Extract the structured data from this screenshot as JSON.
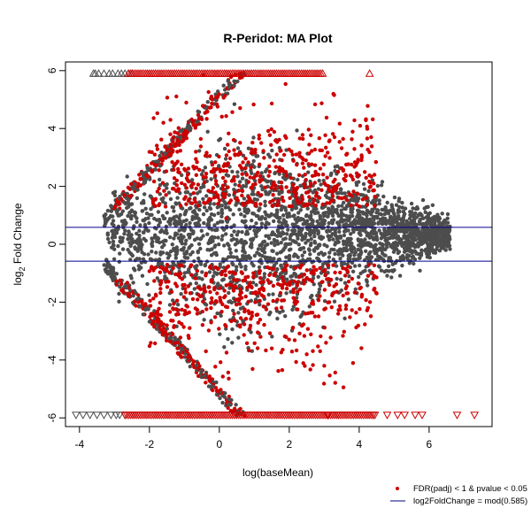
{
  "chart_data": {
    "type": "scatter",
    "title": "R-Peridot: MA Plot",
    "xlabel": "log(baseMean)",
    "ylabel_main": "log",
    "ylabel_sub": "2",
    "ylabel_rest": " Fold Change",
    "xlim": [
      -4.4,
      7.8
    ],
    "ylim": [
      -6.3,
      6.3
    ],
    "xticks": [
      -4,
      -2,
      0,
      2,
      4,
      6
    ],
    "yticks": [
      -6,
      -4,
      -2,
      0,
      2,
      4,
      6
    ],
    "threshold_lines": [
      0.585,
      -0.585
    ],
    "grid": false,
    "legend_position": "bottom-right",
    "colors": {
      "nonsignificant": "#4d4d4d",
      "significant": "#cc0000",
      "threshold_line": "#00008b",
      "axis": "#000000"
    },
    "series": [
      {
        "name": "FDR(padj) < 1 & pvalue < 0.05",
        "marker": "filled-circle",
        "color": "#cc0000",
        "points": [
          [
            -1.6,
            4.2
          ],
          [
            -1.4,
            3.8
          ],
          [
            -1.2,
            3.2
          ],
          [
            -1.0,
            2.6
          ],
          [
            -0.8,
            2.0
          ],
          [
            -1.5,
            -2.8
          ],
          [
            -1.2,
            -3.4
          ],
          [
            -0.9,
            -3.9
          ],
          [
            -0.6,
            -4.3
          ],
          [
            -0.3,
            -4.6
          ],
          [
            1.2,
            3.5
          ],
          [
            1.8,
            2.6
          ],
          [
            2.2,
            3.1
          ],
          [
            2.6,
            2.0
          ],
          [
            3.2,
            1.5
          ],
          [
            1.5,
            -3.6
          ],
          [
            2.1,
            -2.9
          ],
          [
            2.5,
            -3.8
          ],
          [
            3.0,
            -4.2
          ],
          [
            3.4,
            -2.4
          ],
          [
            0.5,
            1.6
          ],
          [
            0.8,
            -1.5
          ],
          [
            0.2,
            0.9
          ],
          [
            -0.1,
            -0.8
          ],
          [
            4.2,
            1.6
          ],
          [
            4.5,
            -1.7
          ]
        ],
        "capped_high_x": [
          4.3
        ],
        "capped_low_x": [
          3.1,
          3.4,
          4.4,
          4.8,
          5.1,
          5.3,
          5.6,
          5.8,
          6.8,
          7.3
        ]
      },
      {
        "name": "log2FoldChange = mod(0.585)",
        "marker": "line",
        "color": "#00008b"
      }
    ],
    "nonsignificant_capped_high_x": [
      -3.6,
      -3.55,
      -3.45,
      -3.3,
      -3.15,
      -3.05,
      -2.9,
      -2.8,
      -2.7,
      -2.6,
      -2.5
    ],
    "nonsignificant_capped_low_x": [
      -4.1,
      -3.9,
      -3.7,
      -3.5,
      -3.3,
      -3.1,
      -2.95,
      -2.85,
      -2.7
    ]
  }
}
